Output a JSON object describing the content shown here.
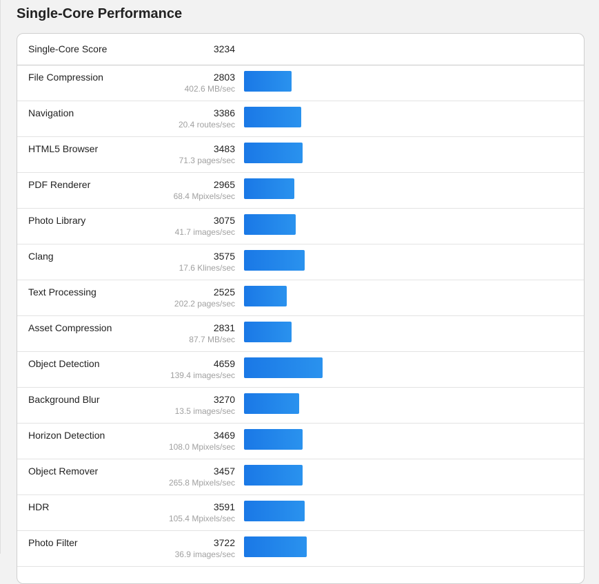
{
  "title": "Single-Core Performance",
  "summary": {
    "label": "Single-Core Score",
    "score": "3234"
  },
  "chart_data": {
    "type": "bar",
    "orientation": "horizontal",
    "title": "Single-Core Performance",
    "bar_color": "#1a78e6",
    "categories": [
      "File Compression",
      "Navigation",
      "HTML5 Browser",
      "PDF Renderer",
      "Photo Library",
      "Clang",
      "Text Processing",
      "Asset Compression",
      "Object Detection",
      "Background Blur",
      "Horizon Detection",
      "Object Remover",
      "HDR",
      "Photo Filter"
    ],
    "values": [
      2803,
      3386,
      3483,
      2965,
      3075,
      3575,
      2525,
      2831,
      4659,
      3270,
      3469,
      3457,
      3591,
      3722
    ],
    "units": [
      "402.6 MB/sec",
      "20.4 routes/sec",
      "71.3 pages/sec",
      "68.4 Mpixels/sec",
      "41.7 images/sec",
      "17.6 Klines/sec",
      "202.2 pages/sec",
      "87.7 MB/sec",
      "139.4 images/sec",
      "13.5 images/sec",
      "108.0 Mpixels/sec",
      "265.8 Mpixels/sec",
      "105.4 Mpixels/sec",
      "36.9 images/sec"
    ]
  }
}
